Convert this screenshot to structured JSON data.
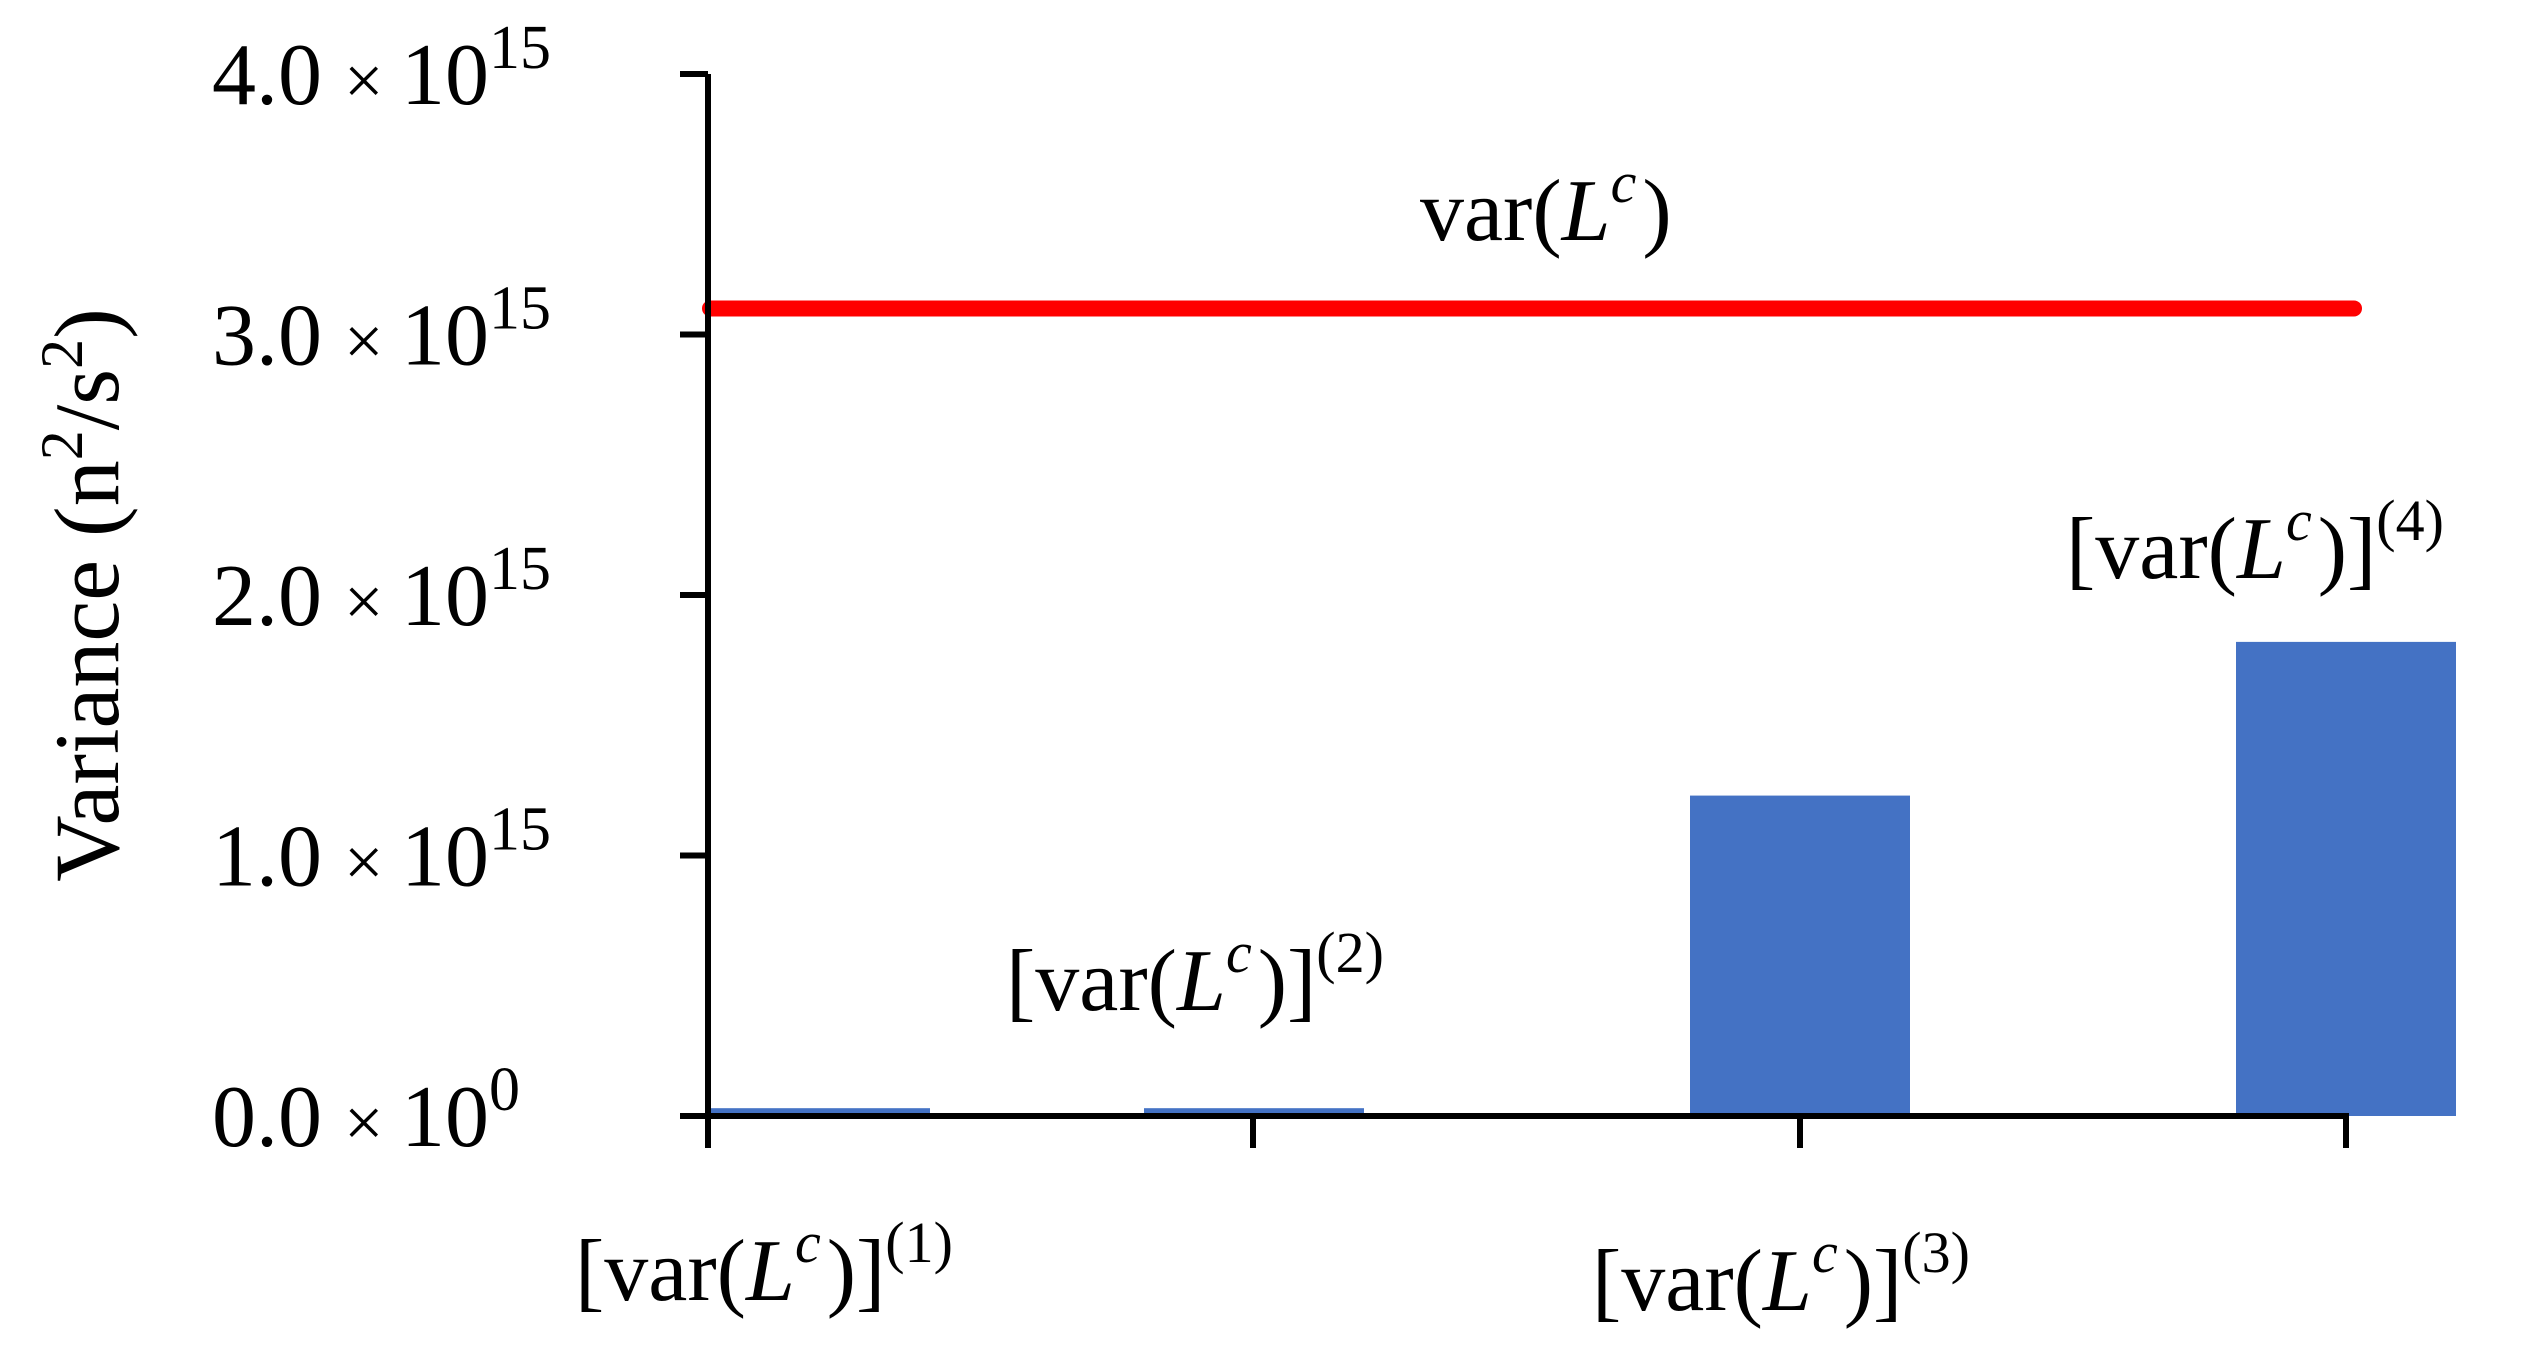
{
  "chart_data": {
    "type": "bar",
    "ylabel": {
      "base": "Variance (n",
      "sup1": "2",
      "mid": "/s",
      "sup2": "2",
      "end": ")"
    },
    "y_ticks": [
      {
        "value": 0,
        "mantissa": "0.0",
        "times": "×",
        "base": "10",
        "exp": "0"
      },
      {
        "value": 1000000000000000.0,
        "mantissa": "1.0",
        "times": "×",
        "base": "10",
        "exp": "15"
      },
      {
        "value": 2000000000000000.0,
        "mantissa": "2.0",
        "times": "×",
        "base": "10",
        "exp": "15"
      },
      {
        "value": 3000000000000000.0,
        "mantissa": "3.0",
        "times": "×",
        "base": "10",
        "exp": "15"
      },
      {
        "value": 4000000000000000.0,
        "mantissa": "4.0",
        "times": "×",
        "base": "10",
        "exp": "15"
      }
    ],
    "ylim": [
      0,
      4000000000000000.0
    ],
    "categories": [
      {
        "pre": "[var(",
        "italic": "L",
        "sup": "c",
        "post": ")]",
        "order": "(1)"
      },
      {
        "pre": "[var(",
        "italic": "L",
        "sup": "c",
        "post": ")]",
        "order": "(2)"
      },
      {
        "pre": "[var(",
        "italic": "L",
        "sup": "c",
        "post": ")]",
        "order": "(3)"
      },
      {
        "pre": "[var(",
        "italic": "L",
        "sup": "c",
        "post": ")]",
        "order": "(4)"
      }
    ],
    "values": [
      30000000000000.0,
      30000000000000.0,
      1230000000000000.0,
      1820000000000000.0
    ],
    "bar_color": "#4472C4",
    "reference_line": {
      "value": 3100000000000000.0,
      "color": "#FF0000",
      "label": {
        "pre": "var(",
        "italic": "L",
        "sup": "c",
        "post": ")"
      }
    }
  }
}
